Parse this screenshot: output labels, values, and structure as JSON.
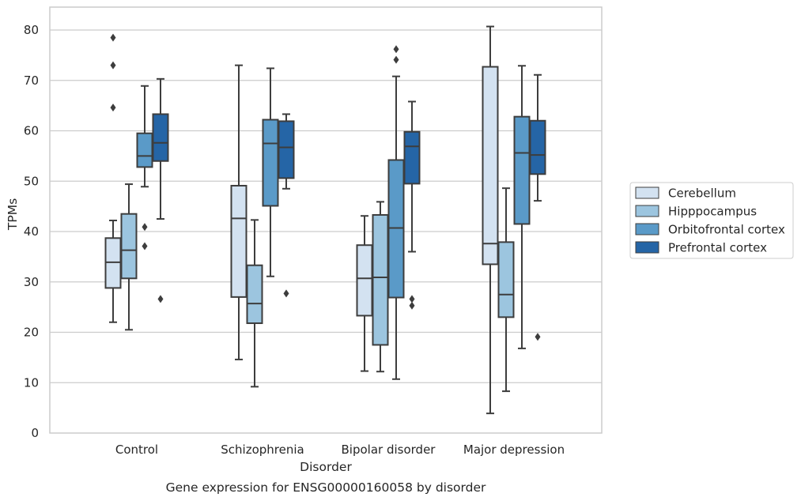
{
  "caption": "Gene expression for ENSG00000160058 by disorder",
  "colors": {
    "Cerebellum": "#d3e2f1",
    "Hipppocampus": "#9cc5df",
    "Orbitofrontal cortex": "#5a9ac8",
    "Prefrontal cortex": "#2565a6",
    "grid": "#cccccc",
    "frame": "#cccccc",
    "box_edge": "#3d3d3d"
  },
  "chart_data": {
    "type": "box",
    "title": "",
    "xlabel": "Disorder",
    "ylabel": "TPMs",
    "ylim": [
      0,
      84.5
    ],
    "yticks": [
      0,
      10,
      20,
      30,
      40,
      50,
      60,
      70,
      80
    ],
    "grid": true,
    "legend_position": "right",
    "categories": [
      "Control",
      "Schizophrenia",
      "Bipolar disorder",
      "Major depression"
    ],
    "series": [
      {
        "name": "Cerebellum",
        "boxes": [
          {
            "whislo": 22.0,
            "q1": 28.8,
            "med": 33.9,
            "q3": 38.7,
            "whishi": 42.2,
            "fliers": [
              64.6,
              73.0,
              78.5
            ]
          },
          {
            "whislo": 14.6,
            "q1": 27.0,
            "med": 42.6,
            "q3": 49.1,
            "whishi": 73.0,
            "fliers": []
          },
          {
            "whislo": 12.3,
            "q1": 23.3,
            "med": 30.7,
            "q3": 37.3,
            "whishi": 43.1,
            "fliers": []
          },
          {
            "whislo": 3.9,
            "q1": 33.5,
            "med": 37.6,
            "q3": 72.7,
            "whishi": 80.7,
            "fliers": []
          }
        ]
      },
      {
        "name": "Hipppocampus",
        "boxes": [
          {
            "whislo": 20.5,
            "q1": 30.7,
            "med": 36.3,
            "q3": 43.5,
            "whishi": 49.4,
            "fliers": []
          },
          {
            "whislo": 9.2,
            "q1": 21.8,
            "med": 25.7,
            "q3": 33.3,
            "whishi": 42.3,
            "fliers": []
          },
          {
            "whislo": 12.2,
            "q1": 17.5,
            "med": 30.9,
            "q3": 43.3,
            "whishi": 45.9,
            "fliers": []
          },
          {
            "whislo": 8.3,
            "q1": 23.0,
            "med": 27.5,
            "q3": 37.9,
            "whishi": 48.6,
            "fliers": []
          }
        ]
      },
      {
        "name": "Orbitofrontal cortex",
        "boxes": [
          {
            "whislo": 48.9,
            "q1": 52.8,
            "med": 55.0,
            "q3": 59.5,
            "whishi": 68.9,
            "fliers": [
              37.1,
              40.9
            ]
          },
          {
            "whislo": 31.1,
            "q1": 45.1,
            "med": 57.5,
            "q3": 62.2,
            "whishi": 72.4,
            "fliers": []
          },
          {
            "whislo": 10.7,
            "q1": 26.9,
            "med": 40.7,
            "q3": 54.2,
            "whishi": 70.8,
            "fliers": [
              76.2,
              74.1
            ]
          },
          {
            "whislo": 16.8,
            "q1": 41.5,
            "med": 55.6,
            "q3": 62.8,
            "whishi": 72.9,
            "fliers": []
          }
        ]
      },
      {
        "name": "Prefrontal cortex",
        "boxes": [
          {
            "whislo": 42.5,
            "q1": 54.0,
            "med": 57.6,
            "q3": 63.3,
            "whishi": 70.3,
            "fliers": [
              26.6
            ]
          },
          {
            "whislo": 48.5,
            "q1": 50.6,
            "med": 56.7,
            "q3": 61.9,
            "whishi": 63.3,
            "fliers": [
              27.7
            ]
          },
          {
            "whislo": 36.0,
            "q1": 49.5,
            "med": 56.9,
            "q3": 59.8,
            "whishi": 65.8,
            "fliers": [
              25.3,
              26.6
            ]
          },
          {
            "whislo": 46.1,
            "q1": 51.4,
            "med": 55.2,
            "q3": 62.0,
            "whishi": 71.1,
            "fliers": [
              19.1
            ]
          }
        ]
      }
    ]
  }
}
